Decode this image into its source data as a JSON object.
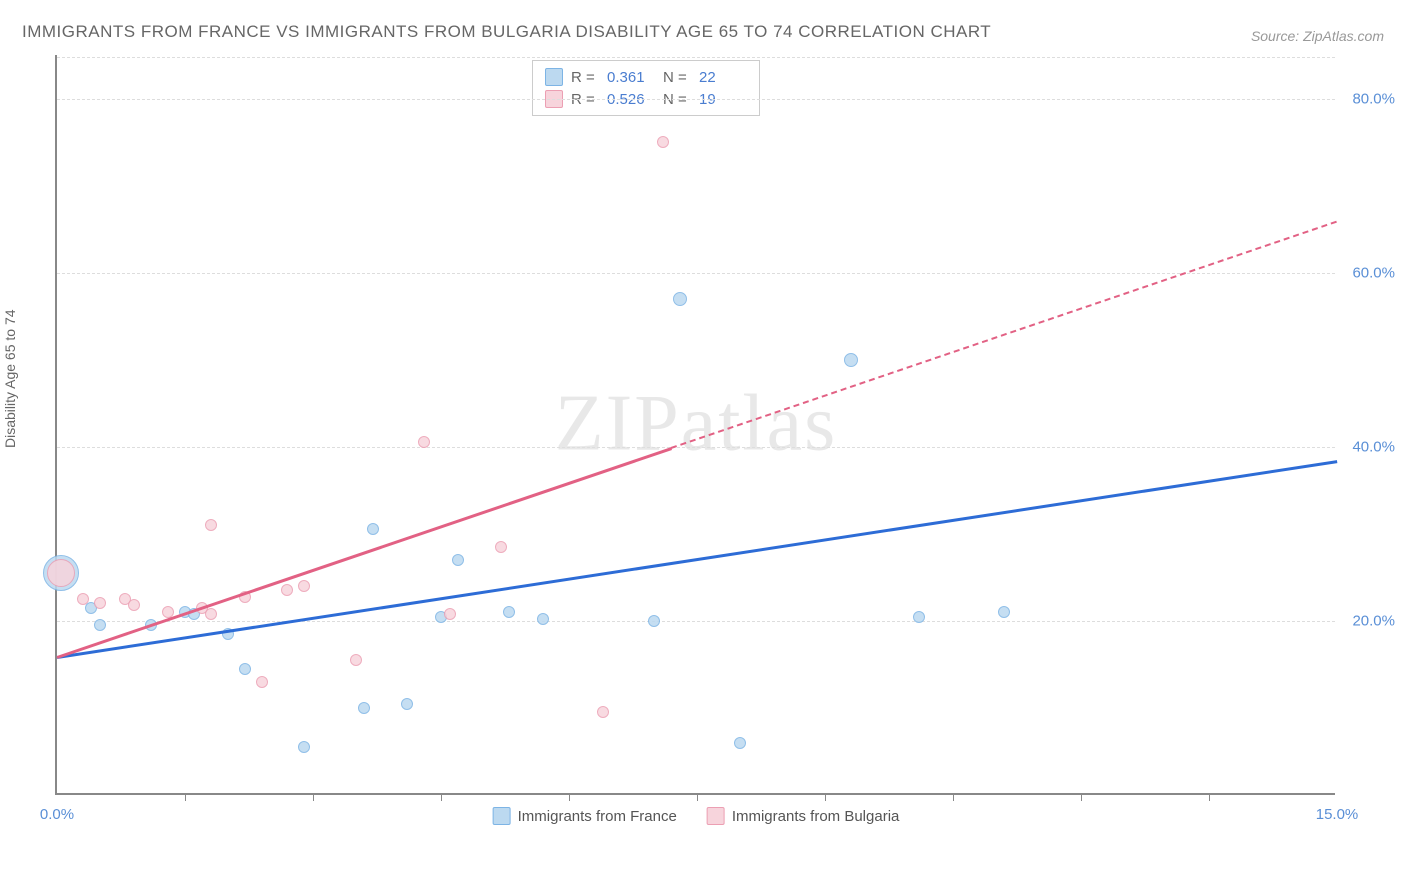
{
  "title": "IMMIGRANTS FROM FRANCE VS IMMIGRANTS FROM BULGARIA DISABILITY AGE 65 TO 74 CORRELATION CHART",
  "source": "Source: ZipAtlas.com",
  "y_axis_label": "Disability Age 65 to 74",
  "watermark": "ZIPatlas",
  "chart": {
    "type": "scatter-with-trends",
    "xlim": [
      0,
      15
    ],
    "ylim": [
      0,
      85
    ],
    "x_ticks_labeled": [
      {
        "v": 0,
        "label": "0.0%"
      },
      {
        "v": 15,
        "label": "15.0%"
      }
    ],
    "x_ticks_unlabeled": [
      1.5,
      3,
      4.5,
      6,
      7.5,
      9,
      10.5,
      12,
      13.5
    ],
    "y_gridlines": [
      20,
      40,
      60,
      80
    ],
    "y_tick_labels": [
      "20.0%",
      "40.0%",
      "60.0%",
      "80.0%"
    ],
    "grid_color": "#dddddd",
    "axis_color": "#888888",
    "background": "#ffffff"
  },
  "series": [
    {
      "id": "france",
      "name": "Immigrants from France",
      "fill": "#bcd9f0",
      "stroke": "#7db4e5",
      "trend_color": "#2d6cd6",
      "trend_style": "solid",
      "R": "0.361",
      "N": "22",
      "trend": {
        "x1": 0,
        "y1": 16,
        "x2": 15,
        "y2": 38.5
      },
      "points": [
        {
          "x": 0.05,
          "y": 25.5,
          "r": 18
        },
        {
          "x": 0.4,
          "y": 21.5,
          "r": 6
        },
        {
          "x": 0.5,
          "y": 19.5,
          "r": 6
        },
        {
          "x": 1.1,
          "y": 19.5,
          "r": 6
        },
        {
          "x": 1.5,
          "y": 21,
          "r": 6
        },
        {
          "x": 1.6,
          "y": 20.8,
          "r": 6
        },
        {
          "x": 2.0,
          "y": 18.5,
          "r": 6
        },
        {
          "x": 2.2,
          "y": 14.5,
          "r": 6
        },
        {
          "x": 2.9,
          "y": 5.5,
          "r": 6
        },
        {
          "x": 3.6,
          "y": 10,
          "r": 6
        },
        {
          "x": 3.7,
          "y": 30.5,
          "r": 6
        },
        {
          "x": 4.1,
          "y": 10.5,
          "r": 6
        },
        {
          "x": 4.5,
          "y": 20.5,
          "r": 6
        },
        {
          "x": 4.7,
          "y": 27,
          "r": 6
        },
        {
          "x": 5.3,
          "y": 21,
          "r": 6
        },
        {
          "x": 5.7,
          "y": 20.2,
          "r": 6
        },
        {
          "x": 7.0,
          "y": 20,
          "r": 6
        },
        {
          "x": 7.3,
          "y": 57,
          "r": 7
        },
        {
          "x": 8.0,
          "y": 6,
          "r": 6
        },
        {
          "x": 9.3,
          "y": 50,
          "r": 7
        },
        {
          "x": 10.1,
          "y": 20.5,
          "r": 6
        },
        {
          "x": 11.1,
          "y": 21,
          "r": 6
        }
      ]
    },
    {
      "id": "bulgaria",
      "name": "Immigrants from Bulgaria",
      "fill": "#f7d4dc",
      "stroke": "#ec9fb3",
      "trend_color": "#e26184",
      "trend_style": "split",
      "R": "0.526",
      "N": "19",
      "trend": {
        "x1": 0,
        "y1": 16,
        "x2": 15,
        "y2": 66,
        "x_solid_end": 7.2
      },
      "points": [
        {
          "x": 0.05,
          "y": 25.5,
          "r": 14
        },
        {
          "x": 0.3,
          "y": 22.5,
          "r": 6
        },
        {
          "x": 0.5,
          "y": 22,
          "r": 6
        },
        {
          "x": 0.8,
          "y": 22.5,
          "r": 6
        },
        {
          "x": 0.9,
          "y": 21.8,
          "r": 6
        },
        {
          "x": 1.3,
          "y": 21,
          "r": 6
        },
        {
          "x": 1.7,
          "y": 21.5,
          "r": 6
        },
        {
          "x": 1.8,
          "y": 20.8,
          "r": 6
        },
        {
          "x": 1.8,
          "y": 31,
          "r": 6
        },
        {
          "x": 2.2,
          "y": 22.8,
          "r": 6
        },
        {
          "x": 2.4,
          "y": 13,
          "r": 6
        },
        {
          "x": 2.7,
          "y": 23.5,
          "r": 6
        },
        {
          "x": 2.9,
          "y": 24,
          "r": 6
        },
        {
          "x": 3.5,
          "y": 15.5,
          "r": 6
        },
        {
          "x": 4.3,
          "y": 40.5,
          "r": 6
        },
        {
          "x": 4.6,
          "y": 20.8,
          "r": 6
        },
        {
          "x": 5.2,
          "y": 28.5,
          "r": 6
        },
        {
          "x": 6.4,
          "y": 9.5,
          "r": 6
        },
        {
          "x": 7.1,
          "y": 75,
          "r": 6
        }
      ]
    }
  ]
}
